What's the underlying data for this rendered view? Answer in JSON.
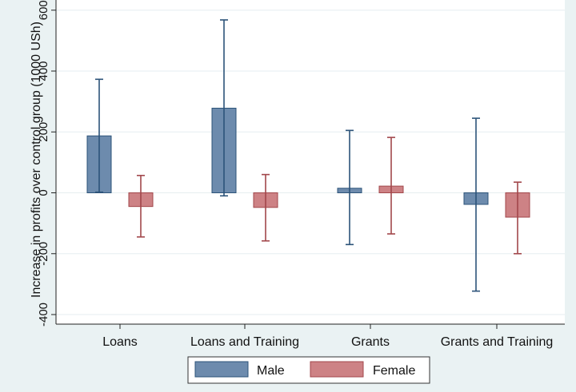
{
  "chart_data": {
    "type": "bar",
    "title": "",
    "xlabel": "",
    "ylabel": "Increase in profits over control group (1000 USh)",
    "categories": [
      "Loans",
      "Loans and Training",
      "Grants",
      "Grants and Training"
    ],
    "ylim": [
      -420,
      620
    ],
    "yticks": [
      -400,
      -200,
      0,
      200,
      400,
      600
    ],
    "grid": true,
    "legend": "bottom",
    "series": [
      {
        "name": "Male",
        "color": "#6d8bad",
        "values": [
          187,
          278,
          15,
          -38
        ],
        "ci_low": [
          2,
          -10,
          -170,
          -323
        ],
        "ci_high": [
          373,
          568,
          205,
          245
        ]
      },
      {
        "name": "Female",
        "color": "#cd8285",
        "values": [
          -45,
          -48,
          22,
          -80
        ],
        "ci_low": [
          -145,
          -158,
          -135,
          -200
        ],
        "ci_high": [
          57,
          60,
          182,
          35
        ]
      }
    ]
  }
}
